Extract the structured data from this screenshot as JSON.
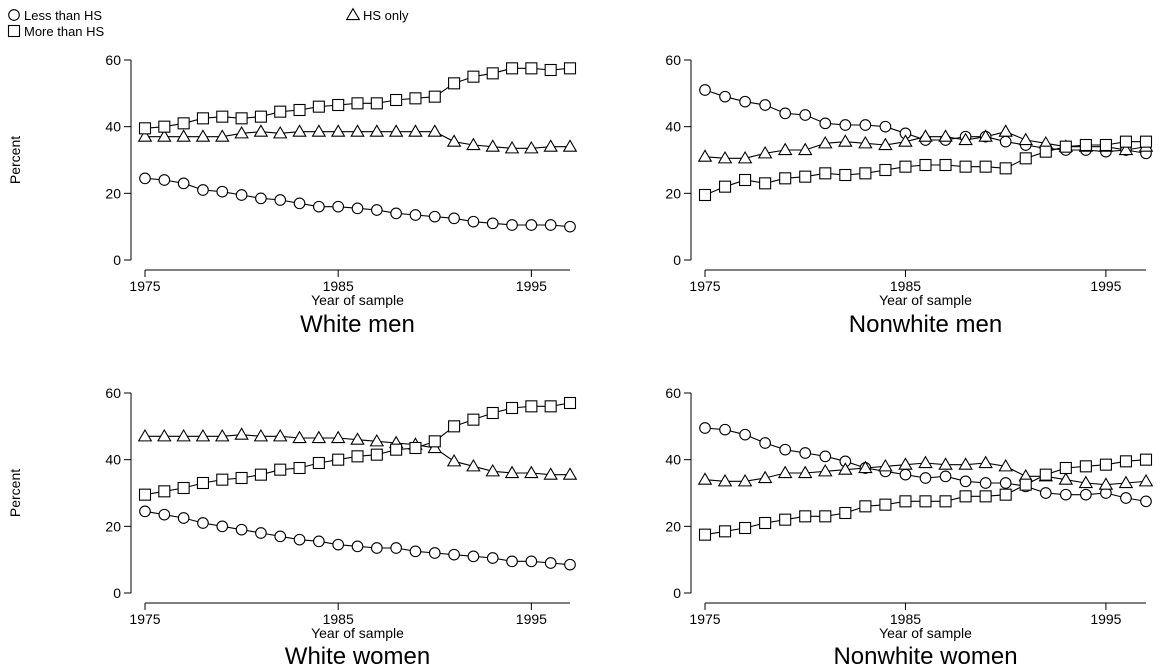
{
  "legend": {
    "items": [
      {
        "label": "Less than HS",
        "marker": "circle"
      },
      {
        "label": "HS only",
        "marker": "triangle"
      },
      {
        "label": "More than HS",
        "marker": "square"
      }
    ]
  },
  "chart_data": [
    {
      "type": "line",
      "title": "White men",
      "xlabel": "Year of sample",
      "ylabel": "Percent",
      "xticks": [
        "1975",
        "1985",
        "1995"
      ],
      "yticks": [
        "0",
        "20",
        "40",
        "60"
      ],
      "xlim": [
        1975,
        1997
      ],
      "ylim": [
        0,
        60
      ],
      "x": [
        1975,
        1976,
        1977,
        1978,
        1979,
        1980,
        1981,
        1982,
        1983,
        1984,
        1985,
        1986,
        1987,
        1988,
        1989,
        1990,
        1991,
        1992,
        1993,
        1994,
        1995,
        1996,
        1997
      ],
      "series": [
        {
          "name": "Less than HS",
          "marker": "circle",
          "values": [
            24.5,
            24,
            23,
            21,
            20.5,
            19.5,
            18.5,
            18,
            17,
            16,
            16,
            15.5,
            15,
            14,
            13.5,
            13,
            12.5,
            11.5,
            11,
            10.5,
            10.5,
            10.5,
            10
          ]
        },
        {
          "name": "HS only",
          "marker": "triangle",
          "values": [
            37,
            37,
            37,
            37,
            37,
            38,
            38.5,
            38,
            38.5,
            38.5,
            38.5,
            38.5,
            38.5,
            38.5,
            38.5,
            38.5,
            35.5,
            34.5,
            34,
            33.5,
            33.5,
            34,
            34
          ]
        },
        {
          "name": "More than HS",
          "marker": "square",
          "values": [
            39.5,
            40,
            41,
            42.5,
            43,
            42.5,
            43,
            44.5,
            45,
            46,
            46.5,
            47,
            47,
            48,
            48.5,
            49,
            53,
            55,
            56,
            57.5,
            57.5,
            57,
            57.5
          ]
        }
      ]
    },
    {
      "type": "line",
      "title": "Nonwhite men",
      "xlabel": "Year of sample",
      "ylabel": "",
      "xticks": [
        "1975",
        "1985",
        "1995"
      ],
      "yticks": [
        "0",
        "20",
        "40",
        "60"
      ],
      "xlim": [
        1975,
        1997
      ],
      "ylim": [
        0,
        60
      ],
      "x": [
        1975,
        1976,
        1977,
        1978,
        1979,
        1980,
        1981,
        1982,
        1983,
        1984,
        1985,
        1986,
        1987,
        1988,
        1989,
        1990,
        1991,
        1992,
        1993,
        1994,
        1995,
        1996,
        1997
      ],
      "series": [
        {
          "name": "Less than HS",
          "marker": "circle",
          "values": [
            51,
            49,
            47.5,
            46.5,
            44,
            43.5,
            41,
            40.5,
            40.5,
            40,
            38,
            36,
            36,
            37,
            37,
            35.5,
            34.5,
            33.5,
            33,
            33,
            32.5,
            33,
            32
          ]
        },
        {
          "name": "HS only",
          "marker": "triangle",
          "values": [
            31,
            30.5,
            30.5,
            32,
            33,
            33,
            35,
            35.5,
            35,
            34.5,
            35.5,
            37,
            37,
            36,
            37,
            38.5,
            36,
            35,
            34,
            34,
            34,
            33,
            34
          ]
        },
        {
          "name": "More than HS",
          "marker": "square",
          "values": [
            19.5,
            22,
            24,
            23,
            24.5,
            25,
            26,
            25.5,
            26,
            27,
            28,
            28.5,
            28.5,
            28,
            28,
            27.5,
            30.5,
            32.5,
            34,
            34.5,
            34.5,
            35.5,
            35.5
          ]
        }
      ]
    },
    {
      "type": "line",
      "title": "White women",
      "xlabel": "Year of sample",
      "ylabel": "Percent",
      "xticks": [
        "1975",
        "1985",
        "1995"
      ],
      "yticks": [
        "0",
        "20",
        "40",
        "60"
      ],
      "xlim": [
        1975,
        1997
      ],
      "ylim": [
        0,
        60
      ],
      "x": [
        1975,
        1976,
        1977,
        1978,
        1979,
        1980,
        1981,
        1982,
        1983,
        1984,
        1985,
        1986,
        1987,
        1988,
        1989,
        1990,
        1991,
        1992,
        1993,
        1994,
        1995,
        1996,
        1997
      ],
      "series": [
        {
          "name": "Less than HS",
          "marker": "circle",
          "values": [
            24.5,
            23.5,
            22.5,
            21,
            20,
            19,
            18,
            17,
            16,
            15.5,
            14.5,
            14,
            13.5,
            13.5,
            12.5,
            12,
            11.5,
            11,
            10.5,
            9.5,
            9.5,
            9,
            8.5
          ]
        },
        {
          "name": "HS only",
          "marker": "triangle",
          "values": [
            47,
            47,
            47,
            47,
            47,
            47.5,
            47,
            47,
            46.5,
            46.5,
            46.5,
            46,
            45.5,
            45,
            44.5,
            43.5,
            39.5,
            38,
            36.5,
            36,
            36,
            35.5,
            35.5
          ]
        },
        {
          "name": "More than HS",
          "marker": "square",
          "values": [
            29.5,
            30.5,
            31.5,
            33,
            34,
            34.5,
            35.5,
            37,
            37.5,
            39,
            40,
            41,
            41.5,
            43,
            43.5,
            45.5,
            50,
            52,
            54,
            55.5,
            56,
            56,
            57
          ]
        }
      ]
    },
    {
      "type": "line",
      "title": "Nonwhite women",
      "xlabel": "Year of sample",
      "ylabel": "",
      "xticks": [
        "1975",
        "1985",
        "1995"
      ],
      "yticks": [
        "0",
        "20",
        "40",
        "60"
      ],
      "xlim": [
        1975,
        1997
      ],
      "ylim": [
        0,
        60
      ],
      "x": [
        1975,
        1976,
        1977,
        1978,
        1979,
        1980,
        1981,
        1982,
        1983,
        1984,
        1985,
        1986,
        1987,
        1988,
        1989,
        1990,
        1991,
        1992,
        1993,
        1994,
        1995,
        1996,
        1997
      ],
      "series": [
        {
          "name": "Less than HS",
          "marker": "circle",
          "values": [
            49.5,
            49,
            47.5,
            45,
            43,
            42,
            41,
            39.5,
            37.5,
            36.5,
            35.5,
            34.5,
            35,
            33.5,
            33,
            33,
            32,
            30,
            29.5,
            29.5,
            30,
            28.5,
            27.5
          ]
        },
        {
          "name": "HS only",
          "marker": "triangle",
          "values": [
            34,
            33.5,
            33.5,
            34.5,
            36,
            36,
            36.5,
            37,
            37.5,
            38,
            38.5,
            39,
            38.5,
            38.5,
            39,
            38,
            35,
            35,
            34,
            33,
            32.5,
            33,
            33.5
          ]
        },
        {
          "name": "More than HS",
          "marker": "square",
          "values": [
            17.5,
            18.5,
            19.5,
            21,
            22,
            23,
            23,
            24,
            26,
            26.5,
            27.5,
            27.5,
            27.5,
            29,
            29,
            29.5,
            32.5,
            35.5,
            37.5,
            38,
            38.5,
            39.5,
            40
          ]
        }
      ]
    }
  ]
}
